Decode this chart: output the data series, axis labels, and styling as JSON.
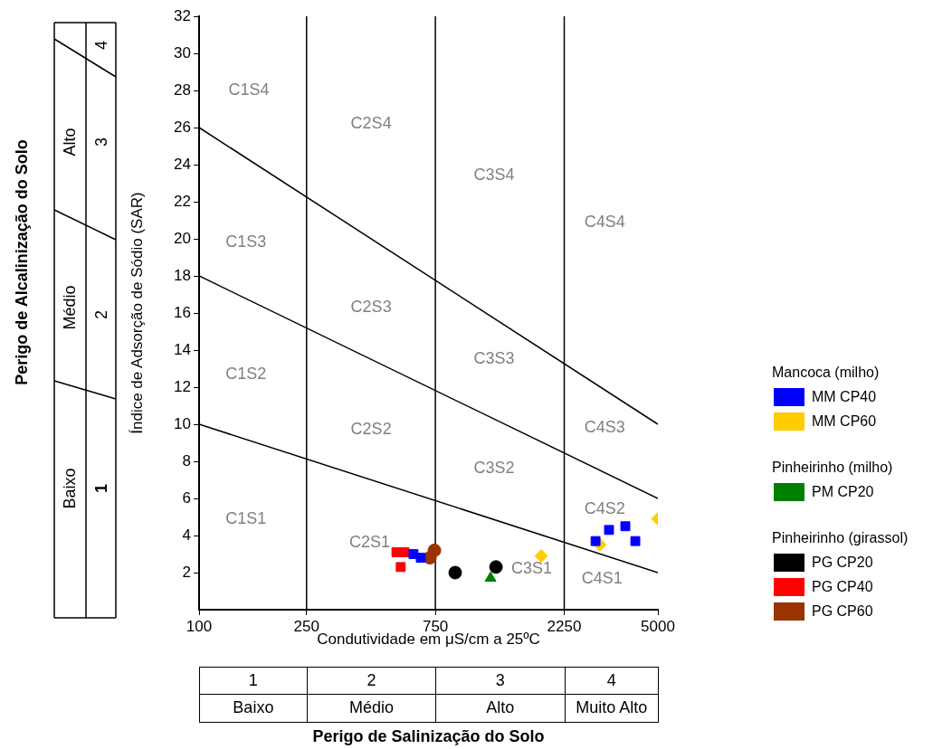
{
  "chart_data": {
    "type": "scatter",
    "xlabel": "Condutividade em μS/cm a 25ºC",
    "ylabel": "Índice de Adsorção de Sódio (SAR)",
    "log": "x",
    "xlim": [
      100,
      5000
    ],
    "xticks": [
      100,
      250,
      750,
      2250,
      5000
    ],
    "ylim": [
      0,
      32
    ],
    "yticks": [
      2,
      4,
      6,
      8,
      10,
      12,
      14,
      16,
      18,
      20,
      22,
      24,
      26,
      28,
      30,
      32
    ],
    "legend": "right",
    "series": [
      {
        "name": "MM CP40",
        "color": "#0000ff",
        "marker": "square",
        "x": [
          622,
          662,
          2938,
          3296,
          3788,
          4125
        ],
        "values": [
          3.0,
          2.8,
          3.7,
          4.3,
          4.5,
          3.7
        ]
      },
      {
        "name": "MM CP60",
        "color": "#ffcc00",
        "marker": "diamond",
        "x": [
          1849,
          3052,
          5000
        ],
        "values": [
          2.9,
          3.5,
          4.9
        ]
      },
      {
        "name": "PM CP20",
        "color": "#008000",
        "marker": "triangle",
        "x": [
          1200
        ],
        "values": [
          1.7
        ]
      },
      {
        "name": "PG CP20",
        "color": "#000000",
        "marker": "circle",
        "x": [
          888,
          1257
        ],
        "values": [
          2.0,
          2.3
        ]
      },
      {
        "name": "PG CP40",
        "color": "#ff0000",
        "marker": "square",
        "x": [
          538,
          576,
          558
        ],
        "values": [
          3.1,
          3.1,
          2.3
        ]
      },
      {
        "name": "PG CP60",
        "color": "#993300",
        "marker": "circle",
        "x": [
          744,
          716
        ],
        "values": [
          3.2,
          2.8
        ]
      },
      {
        "type": "line",
        "color": "#000000",
        "marker": "none",
        "x": [
          100,
          5000
        ],
        "values": [
          26,
          10
        ]
      },
      {
        "type": "line",
        "color": "#000000",
        "marker": "none",
        "x": [
          100,
          5000
        ],
        "values": [
          18,
          6
        ]
      },
      {
        "type": "line",
        "color": "#000000",
        "marker": "none",
        "x": [
          100,
          5000
        ],
        "values": [
          10,
          2
        ]
      }
    ],
    "ref_lines": [
      {
        "axis": "x",
        "value": 250,
        "color": "#000000"
      },
      {
        "axis": "x",
        "value": 750,
        "color": "#000000"
      },
      {
        "axis": "x",
        "value": 2250,
        "color": "#000000"
      }
    ],
    "annotations": [
      "Perigo de Salinização do Solo",
      "1",
      "2",
      "3",
      "4",
      "Baixo",
      "Médio",
      "Alto",
      "Muito Alto",
      "Perigo de Alcalinização do Solo",
      "1",
      "2",
      "3",
      "4",
      "Baixo",
      "Médio",
      "Alto",
      "Mancoca (milho)",
      "Pinheirinho (milho)",
      "Pinheirinho (girassol)",
      "C1S4",
      "C2S4",
      "C3S4",
      "C4S4",
      "C1S3",
      "C2S3",
      "C3S3",
      "C4S3",
      "C1S2",
      "C2S2",
      "C3S2",
      "C4S2",
      "C1S1",
      "C2S1",
      "C3S1",
      "C4S1"
    ]
  }
}
